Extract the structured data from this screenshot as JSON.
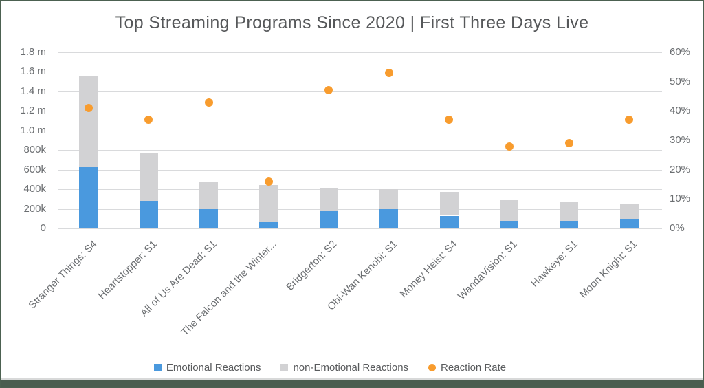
{
  "title": "Top Streaming Programs Since 2020 | First Three Days Live",
  "chart_data": {
    "type": "bar",
    "subtype": "stacked-column-with-scatter-overlay",
    "title": "Top Streaming Programs Since 2020 | First Three Days Live",
    "categories": [
      "Stranger Things: S4",
      "Heartstopper: S1",
      "All of Us Are Dead: S1",
      "The Falcon and the Winter...",
      "Bridgerton: S2",
      "Obi-Wan Kenobi: S1",
      "Money Heist: S4",
      "WandaVision: S1",
      "Hawkeye: S1",
      "Moon Knight: S1"
    ],
    "series": [
      {
        "name": "Emotional Reactions",
        "type": "bar",
        "stack": "reactions",
        "axis": "left",
        "color": "#4a99de",
        "values": [
          625000,
          280000,
          200000,
          70000,
          185000,
          195000,
          130000,
          80000,
          75000,
          95000
        ]
      },
      {
        "name": "non-Emotional Reactions",
        "type": "bar",
        "stack": "reactions",
        "axis": "left",
        "color": "#d2d2d4",
        "values": [
          930000,
          485000,
          280000,
          370000,
          230000,
          205000,
          240000,
          210000,
          200000,
          155000
        ]
      },
      {
        "name": "Reaction Rate",
        "type": "scatter",
        "axis": "right",
        "color": "#f89c2e",
        "unit": "%",
        "values": [
          41,
          37,
          43,
          16,
          47,
          53,
          37,
          28,
          29,
          37
        ]
      }
    ],
    "stacked_totals": [
      1555000,
      765000,
      480000,
      440000,
      415000,
      400000,
      370000,
      290000,
      275000,
      250000
    ],
    "left_axis": {
      "min": 0,
      "max": 1800000,
      "ticks": [
        {
          "label": "0",
          "value": 0
        },
        {
          "label": "200k",
          "value": 200000
        },
        {
          "label": "400k",
          "value": 400000
        },
        {
          "label": "600k",
          "value": 600000
        },
        {
          "label": "800k",
          "value": 800000
        },
        {
          "label": "1.0 m",
          "value": 1000000
        },
        {
          "label": "1.2 m",
          "value": 1200000
        },
        {
          "label": "1.4 m",
          "value": 1400000
        },
        {
          "label": "1.6 m",
          "value": 1600000
        },
        {
          "label": "1.8 m",
          "value": 1800000
        }
      ]
    },
    "right_axis": {
      "min": 0,
      "max": 60,
      "ticks": [
        {
          "label": "0%",
          "value": 0
        },
        {
          "label": "10%",
          "value": 10
        },
        {
          "label": "20%",
          "value": 20
        },
        {
          "label": "30%",
          "value": 30
        },
        {
          "label": "40%",
          "value": 40
        },
        {
          "label": "50%",
          "value": 50
        },
        {
          "label": "60%",
          "value": 60
        }
      ]
    },
    "grid": "horizontal",
    "legend_position": "bottom",
    "legend": [
      {
        "label": "Emotional Reactions",
        "marker": "square",
        "color": "#4a99de"
      },
      {
        "label": "non-Emotional Reactions",
        "marker": "square",
        "color": "#d2d2d4"
      },
      {
        "label": "Reaction Rate",
        "marker": "circle",
        "color": "#f89c2e"
      }
    ]
  },
  "colors": {
    "background": "#ffffff",
    "frame_border": "#4c6151",
    "bottom_bar": "#4a5d4f",
    "gridline": "#d9dadc",
    "title_text": "#56585a",
    "axis_text": "#6b6e71",
    "legend_text": "#595b5d",
    "bar_emotional": "#4a99de",
    "bar_non_emotional": "#d2d2d4",
    "dot_reaction_rate": "#f89c2e"
  }
}
